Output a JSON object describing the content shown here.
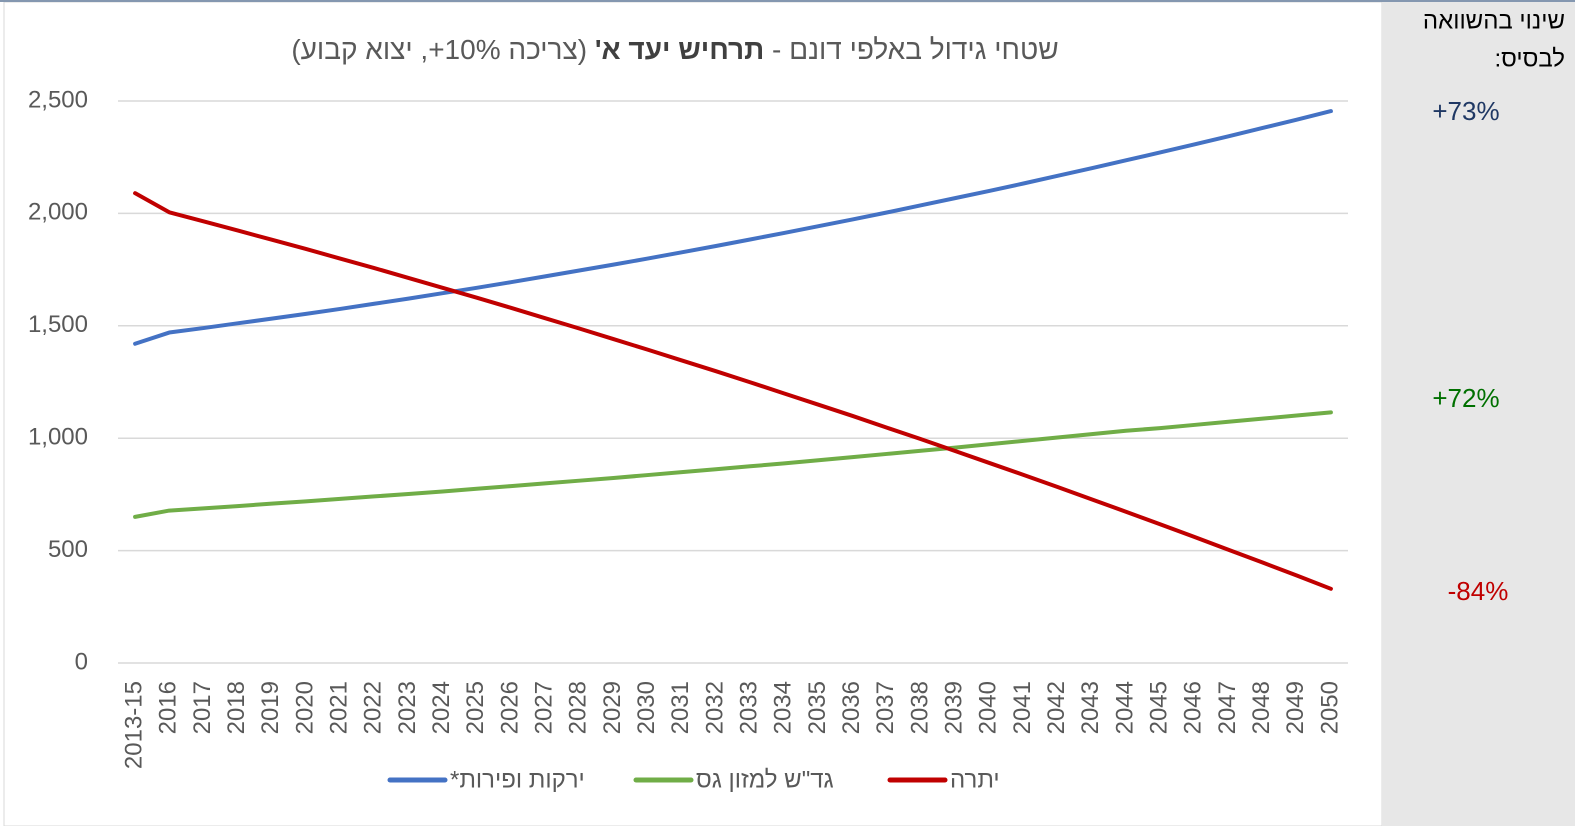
{
  "chart_data": {
    "type": "line",
    "title": {
      "start": "שטחי גידול באלפי דונם -",
      "bold": "תרחיש יעד א'",
      "end": "(צריכה 10%+, יצוא קבוע)"
    },
    "categories": [
      "2013-15",
      "2016",
      "2017",
      "2018",
      "2019",
      "2020",
      "2021",
      "2022",
      "2023",
      "2024",
      "2025",
      "2026",
      "2027",
      "2028",
      "2029",
      "2030",
      "2031",
      "2032",
      "2033",
      "2034",
      "2035",
      "2036",
      "2037",
      "2038",
      "2039",
      "2040",
      "2041",
      "2042",
      "2043",
      "2044",
      "2045",
      "2046",
      "2047",
      "2048",
      "2049",
      "2050"
    ],
    "series": [
      {
        "name": "ירקות ופירות*",
        "color": "#4472c4",
        "values": [
          1420,
          1470,
          1490,
          1511,
          1532,
          1553,
          1575,
          1598,
          1621,
          1645,
          1669,
          1694,
          1720,
          1746,
          1772,
          1799,
          1827,
          1855,
          1884,
          1913,
          1943,
          1973,
          2004,
          2036,
          2068,
          2100,
          2133,
          2167,
          2201,
          2236,
          2271,
          2307,
          2343,
          2380,
          2417,
          2455
        ]
      },
      {
        "name": "גד\"ש למזון גס",
        "color": "#70ad47",
        "values": [
          650,
          678,
          688,
          698,
          709,
          719,
          730,
          741,
          752,
          763,
          775,
          787,
          799,
          811,
          823,
          836,
          849,
          862,
          875,
          888,
          902,
          916,
          930,
          944,
          958,
          973,
          988,
          1003,
          1018,
          1033,
          1045,
          1059,
          1073,
          1087,
          1101,
          1115
        ]
      },
      {
        "name": "יתרה",
        "color": "#c00000",
        "values": [
          2090,
          2005,
          1965,
          1924,
          1883,
          1842,
          1799,
          1757,
          1713,
          1669,
          1625,
          1580,
          1534,
          1488,
          1441,
          1394,
          1346,
          1298,
          1249,
          1199,
          1149,
          1099,
          1047,
          996,
          943,
          890,
          837,
          783,
          728,
          673,
          617,
          561,
          504,
          447,
          389,
          330
        ]
      }
    ],
    "ylim": [
      0,
      2500
    ],
    "yticks": [
      0,
      {
        "value": 500,
        "label": "500"
      },
      {
        "value": 1000,
        "label": "1,000"
      },
      {
        "value": 1500,
        "label": "1,500"
      },
      {
        "value": 2000,
        "label": "2,000"
      },
      {
        "value": 2500,
        "label": "2,500"
      }
    ],
    "grid": true,
    "legend": "bottom",
    "side_heading": [
      "שינוי בהשוואה",
      "לבסיס:"
    ],
    "annotations": [
      {
        "text": "+73%",
        "color": "#1f3864"
      },
      {
        "text": "+72%",
        "color": "#007000"
      },
      {
        "text": "-84%",
        "color": "#c00000"
      }
    ]
  }
}
